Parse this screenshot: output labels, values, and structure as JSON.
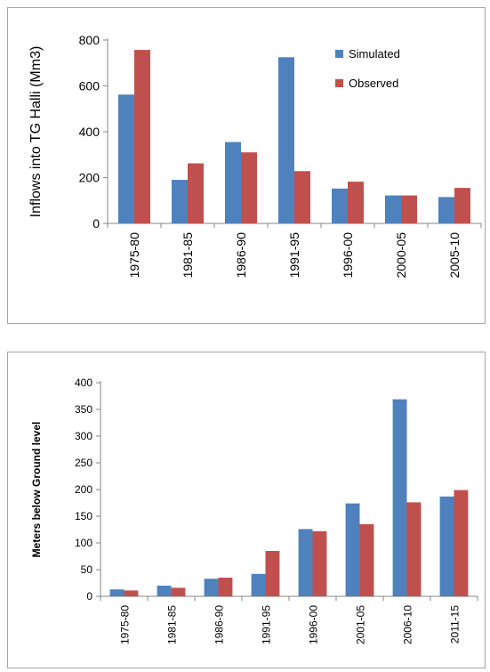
{
  "chart_data": [
    {
      "type": "bar",
      "title": "",
      "xlabel": "",
      "ylabel": "Inflows into TG Halli (Mm3)",
      "categories": [
        "1975-80",
        "1981-85",
        "1986-90",
        "1991-95",
        "1996-00",
        "2000-05",
        "2005-10"
      ],
      "series": [
        {
          "name": "Simulated",
          "color": "#4f81bd",
          "values": [
            562,
            190,
            355,
            725,
            152,
            122,
            115
          ]
        },
        {
          "name": "Observed",
          "color": "#c0504d",
          "values": [
            757,
            262,
            310,
            228,
            182,
            122,
            155
          ]
        }
      ],
      "ylim": [
        0,
        800
      ],
      "yticks": [
        0,
        200,
        400,
        600,
        800
      ],
      "legend": "top-right",
      "grid": false
    },
    {
      "type": "bar",
      "title": "",
      "xlabel": "",
      "ylabel": "Meters below Ground level",
      "categories": [
        "1975-80",
        "1981-85",
        "1986-90",
        "1991-95",
        "1996-00",
        "2001-05",
        "2006-10",
        "2011-15"
      ],
      "series": [
        {
          "name": "",
          "color": "#4f81bd",
          "values": [
            13,
            20,
            33,
            42,
            126,
            174,
            369,
            187
          ]
        },
        {
          "name": "",
          "color": "#c0504d",
          "values": [
            11,
            16,
            35,
            85,
            122,
            135,
            176,
            199
          ]
        }
      ],
      "ylim": [
        0,
        400
      ],
      "yticks": [
        0,
        50,
        100,
        150,
        200,
        250,
        300,
        350,
        400
      ],
      "legend": "none",
      "grid": false
    }
  ]
}
